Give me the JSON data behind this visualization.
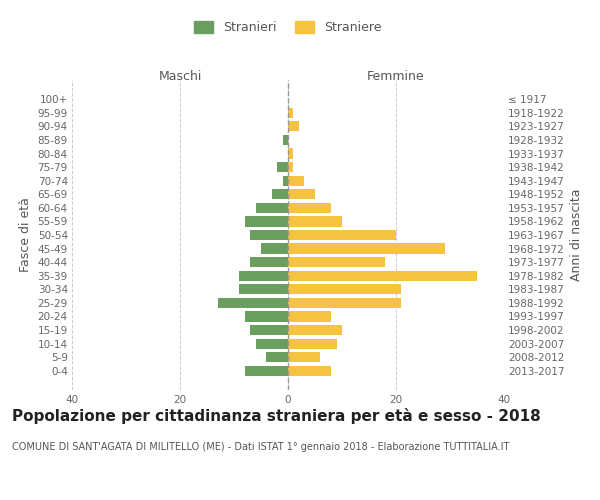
{
  "age_groups": [
    "100+",
    "95-99",
    "90-94",
    "85-89",
    "80-84",
    "75-79",
    "70-74",
    "65-69",
    "60-64",
    "55-59",
    "50-54",
    "45-49",
    "40-44",
    "35-39",
    "30-34",
    "25-29",
    "20-24",
    "15-19",
    "10-14",
    "5-9",
    "0-4"
  ],
  "birth_years": [
    "≤ 1917",
    "1918-1922",
    "1923-1927",
    "1928-1932",
    "1933-1937",
    "1938-1942",
    "1943-1947",
    "1948-1952",
    "1953-1957",
    "1958-1962",
    "1963-1967",
    "1968-1972",
    "1973-1977",
    "1978-1982",
    "1983-1987",
    "1988-1992",
    "1993-1997",
    "1998-2002",
    "2003-2007",
    "2008-2012",
    "2013-2017"
  ],
  "males": [
    0,
    0,
    0,
    1,
    0,
    2,
    1,
    3,
    6,
    8,
    7,
    5,
    7,
    9,
    9,
    13,
    8,
    7,
    6,
    4,
    8
  ],
  "females": [
    0,
    1,
    2,
    0,
    1,
    1,
    3,
    5,
    8,
    10,
    20,
    29,
    18,
    35,
    21,
    21,
    8,
    10,
    9,
    6,
    8
  ],
  "male_color": "#6a9e5f",
  "female_color": "#f5c242",
  "dashed_line_color": "#999999",
  "grid_color": "#cccccc",
  "background_color": "#ffffff",
  "xlim": 40,
  "title": "Popolazione per cittadinanza straniera per età e sesso - 2018",
  "subtitle": "COMUNE DI SANT'AGATA DI MILITELLO (ME) - Dati ISTAT 1° gennaio 2018 - Elaborazione TUTTITALIA.IT",
  "xlabel_left": "Maschi",
  "xlabel_right": "Femmine",
  "ylabel_left": "Fasce di età",
  "ylabel_right": "Anni di nascita",
  "legend_male": "Stranieri",
  "legend_female": "Straniere",
  "tick_fontsize": 7.5,
  "label_fontsize": 9,
  "title_fontsize": 11,
  "subtitle_fontsize": 7
}
